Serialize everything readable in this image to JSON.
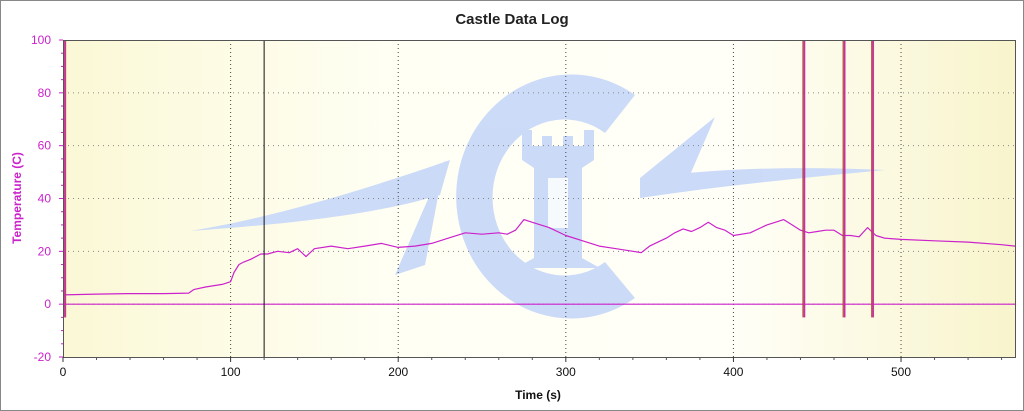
{
  "chart_data": {
    "type": "line",
    "title": "Castle Data Log",
    "xlabel": "Time (s)",
    "ylabel": "Temperature (C)",
    "xlim": [
      0,
      568
    ],
    "ylim": [
      -20,
      100
    ],
    "x_ticks": [
      0,
      100,
      200,
      300,
      400,
      500
    ],
    "y_ticks": [
      -20,
      0,
      20,
      40,
      60,
      80,
      100
    ],
    "grid": true,
    "legend": "none",
    "colors": {
      "series": "#cc22cc",
      "axis_text": "#cc22cc",
      "background": "#fdfbe6",
      "watermark": "#c8d8f8",
      "spike": "#b04040"
    },
    "series": [
      {
        "x": [
          0,
          20,
          40,
          60,
          75,
          78,
          85,
          95,
          100,
          102,
          105,
          108,
          112,
          118,
          122,
          128,
          135,
          140,
          145,
          150,
          160,
          170,
          180,
          190,
          200,
          210,
          220,
          230,
          240,
          250,
          260,
          265,
          270,
          275,
          280,
          290,
          300,
          310,
          320,
          330,
          340,
          345,
          350,
          360,
          365,
          370,
          375,
          380,
          385,
          390,
          395,
          400,
          410,
          420,
          425,
          430,
          435,
          440,
          445,
          450,
          455,
          460,
          465,
          470,
          475,
          480,
          485,
          490,
          500,
          520,
          540,
          560,
          568
        ],
        "values": [
          3.5,
          3.8,
          4.0,
          4.0,
          4.2,
          5.5,
          6.5,
          7.5,
          8.5,
          12,
          15,
          16,
          17,
          19,
          19,
          20,
          19.5,
          21,
          18,
          21,
          22,
          21,
          22,
          23,
          21.5,
          22,
          23,
          25,
          27,
          26.5,
          27,
          26.5,
          28,
          32,
          31,
          29,
          26,
          24,
          22,
          21,
          20,
          19.5,
          22,
          25,
          27,
          28.5,
          27.5,
          29,
          31,
          29,
          28,
          26,
          27,
          30,
          31,
          32,
          30,
          28,
          27,
          27.5,
          28,
          28,
          26,
          26,
          25.5,
          29,
          26,
          25,
          24.5,
          24,
          23.5,
          22.5,
          22
        ]
      },
      {
        "x": [
          0,
          568
        ],
        "values": [
          0,
          0
        ]
      }
    ],
    "spikes": [
      1,
      442,
      466,
      483
    ],
    "markers": [
      120
    ]
  }
}
